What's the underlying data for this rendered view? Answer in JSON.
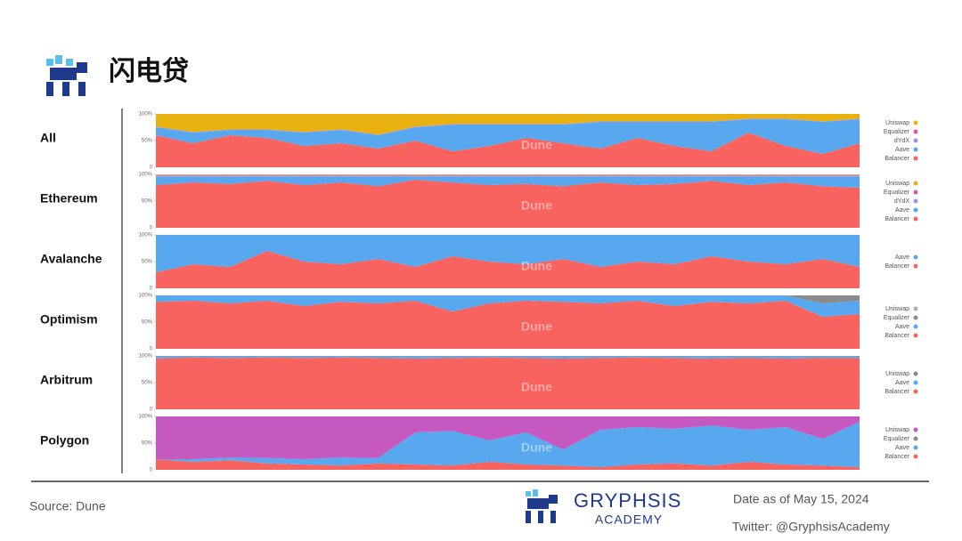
{
  "title": "闪电贷",
  "source": "Source: Dune",
  "brand": "GRYPHSIS",
  "brand_sub": "ACADEMY",
  "date": "Date as of May 15, 2024",
  "twitter": "Twitter: @GryphsisAcademy",
  "watermark": "Dune",
  "chart_data": [
    {
      "type": "area",
      "stacked": true,
      "title": "All",
      "categories": [
        null,
        null,
        null,
        null,
        null,
        null,
        null,
        null,
        null,
        null,
        null,
        null,
        null,
        null,
        null,
        null,
        null,
        null,
        null,
        null
      ],
      "ylim": [
        0,
        100
      ],
      "yticks": [
        0,
        {
          "value": 50,
          "label": "50%"
        },
        {
          "value": 100,
          "label": "100%"
        }
      ],
      "series": [
        {
          "name": "Uniswap",
          "color": "#e9b10f",
          "values": [
            24,
            34,
            29,
            29,
            34,
            29,
            39,
            24,
            19,
            19,
            19,
            19,
            14,
            14,
            14,
            14,
            9,
            9,
            14,
            9
          ]
        },
        {
          "name": "Equalizer",
          "color": "#d65aa8",
          "values": [
            0,
            0,
            0,
            0,
            0,
            0,
            0,
            0,
            0,
            0,
            0,
            0,
            0,
            0,
            0,
            0,
            0,
            0,
            0,
            0
          ]
        },
        {
          "name": "dYdX",
          "color": "#a58ee8",
          "values": [
            1,
            1,
            1,
            1,
            1,
            1,
            1,
            1,
            1,
            1,
            1,
            1,
            1,
            1,
            1,
            1,
            1,
            1,
            1,
            1
          ]
        },
        {
          "name": "Aave",
          "color": "#58a8f0",
          "values": [
            15,
            20,
            10,
            15,
            25,
            25,
            25,
            25,
            50,
            40,
            25,
            35,
            50,
            30,
            45,
            55,
            25,
            50,
            60,
            45
          ]
        },
        {
          "name": "Balancer",
          "color": "#f8625f",
          "values": [
            60,
            45,
            60,
            55,
            40,
            45,
            35,
            50,
            30,
            40,
            55,
            45,
            35,
            55,
            40,
            30,
            65,
            40,
            25,
            45
          ]
        }
      ]
    },
    {
      "type": "area",
      "stacked": true,
      "title": "Ethereum",
      "categories": [
        null,
        null,
        null,
        null,
        null,
        null,
        null,
        null,
        null,
        null,
        null,
        null,
        null,
        null,
        null,
        null,
        null,
        null,
        null,
        null
      ],
      "ylim": [
        0,
        100
      ],
      "yticks": [
        0,
        {
          "value": 50,
          "label": "50%"
        },
        {
          "value": 100,
          "label": "100%"
        }
      ],
      "series": [
        {
          "name": "Uniswap",
          "color": "#e9b10f",
          "values": [
            1,
            1,
            1,
            1,
            1,
            1,
            1,
            1,
            1,
            1,
            1,
            1,
            1,
            1,
            1,
            1,
            1,
            1,
            1,
            1
          ]
        },
        {
          "name": "Equalizer",
          "color": "#d65aa8",
          "values": [
            1,
            1,
            1,
            1,
            1,
            1,
            1,
            1,
            1,
            1,
            1,
            1,
            1,
            1,
            1,
            1,
            1,
            1,
            1,
            1
          ]
        },
        {
          "name": "dYdX",
          "color": "#a58ee8",
          "values": [
            2,
            2,
            2,
            2,
            2,
            2,
            2,
            2,
            2,
            2,
            2,
            2,
            2,
            2,
            2,
            2,
            2,
            2,
            2,
            2
          ]
        },
        {
          "name": "Aave",
          "color": "#58a8f0",
          "values": [
            16,
            11,
            14,
            8,
            16,
            11,
            18,
            6,
            11,
            16,
            14,
            18,
            11,
            16,
            14,
            8,
            16,
            11,
            18,
            21
          ]
        },
        {
          "name": "Balancer",
          "color": "#f8625f",
          "values": [
            80,
            85,
            82,
            88,
            80,
            85,
            78,
            90,
            85,
            80,
            82,
            78,
            85,
            80,
            82,
            88,
            80,
            85,
            78,
            75
          ]
        }
      ]
    },
    {
      "type": "area",
      "stacked": true,
      "title": "Avalanche",
      "categories": [
        null,
        null,
        null,
        null,
        null,
        null,
        null,
        null,
        null,
        null,
        null,
        null,
        null,
        null,
        null,
        null,
        null,
        null,
        null,
        null
      ],
      "ylim": [
        0,
        100
      ],
      "yticks": [
        0,
        {
          "value": 50,
          "label": "50%"
        },
        {
          "value": 100,
          "label": "100%"
        }
      ],
      "series": [
        {
          "name": "Aave",
          "color": "#58a8f0",
          "values": [
            70,
            55,
            60,
            30,
            50,
            55,
            45,
            60,
            40,
            50,
            55,
            45,
            60,
            50,
            55,
            40,
            50,
            55,
            45,
            60
          ]
        },
        {
          "name": "Balancer",
          "color": "#f8625f",
          "values": [
            30,
            45,
            40,
            70,
            50,
            45,
            55,
            40,
            60,
            50,
            45,
            55,
            40,
            50,
            45,
            60,
            50,
            45,
            55,
            40
          ]
        }
      ]
    },
    {
      "type": "area",
      "stacked": true,
      "title": "Optimism",
      "categories": [
        null,
        null,
        null,
        null,
        null,
        null,
        null,
        null,
        null,
        null,
        null,
        null,
        null,
        null,
        null,
        null,
        null,
        null,
        null,
        null
      ],
      "ylim": [
        0,
        100
      ],
      "yticks": [
        0,
        {
          "value": 50,
          "label": "50%"
        },
        {
          "value": 100,
          "label": "100%"
        }
      ],
      "series": [
        {
          "name": "Uniswap",
          "color": "#b0b0b0",
          "values": [
            0,
            0,
            0,
            0,
            0,
            0,
            0,
            0,
            0,
            0,
            0,
            0,
            0,
            0,
            0,
            0,
            0,
            0,
            0,
            0
          ]
        },
        {
          "name": "Equalizer",
          "color": "#8a8a8a",
          "values": [
            0,
            0,
            0,
            0,
            0,
            0,
            0,
            0,
            0,
            0,
            0,
            0,
            0,
            0,
            0,
            0,
            0,
            0,
            15,
            10
          ]
        },
        {
          "name": "Aave",
          "color": "#58a8f0",
          "values": [
            12,
            10,
            15,
            10,
            20,
            12,
            15,
            10,
            30,
            15,
            10,
            12,
            15,
            10,
            20,
            12,
            15,
            10,
            25,
            25
          ]
        },
        {
          "name": "Balancer",
          "color": "#f8625f",
          "values": [
            88,
            90,
            85,
            90,
            80,
            88,
            85,
            90,
            70,
            85,
            90,
            88,
            85,
            90,
            80,
            88,
            85,
            90,
            60,
            65
          ]
        }
      ]
    },
    {
      "type": "area",
      "stacked": true,
      "title": "Arbitrum",
      "categories": [
        null,
        null,
        null,
        null,
        null,
        null,
        null,
        null,
        null,
        null,
        null,
        null,
        null,
        null,
        null,
        null,
        null,
        null,
        null,
        null
      ],
      "ylim": [
        0,
        100
      ],
      "yticks": [
        0,
        {
          "value": 50,
          "label": "50%"
        },
        {
          "value": 100,
          "label": "100%"
        }
      ],
      "series": [
        {
          "name": "Uniswap",
          "color": "#8a8a8a",
          "values": [
            1,
            1,
            1,
            1,
            1,
            1,
            1,
            1,
            1,
            1,
            1,
            1,
            1,
            1,
            1,
            1,
            1,
            1,
            1,
            1
          ]
        },
        {
          "name": "Aave",
          "color": "#58a8f0",
          "values": [
            4,
            2,
            3,
            2,
            3,
            2,
            3,
            4,
            3,
            2,
            3,
            4,
            3,
            2,
            3,
            4,
            3,
            4,
            3,
            3
          ]
        },
        {
          "name": "Balancer",
          "color": "#f8625f",
          "values": [
            95,
            97,
            96,
            97,
            96,
            97,
            96,
            95,
            96,
            97,
            96,
            95,
            96,
            97,
            96,
            95,
            96,
            95,
            96,
            96
          ]
        }
      ]
    },
    {
      "type": "area",
      "stacked": true,
      "title": "Polygon",
      "categories": [
        null,
        null,
        null,
        null,
        null,
        null,
        null,
        null,
        null,
        null,
        null,
        null,
        null,
        null,
        null,
        null,
        null,
        null,
        null,
        null
      ],
      "ylim": [
        0,
        100
      ],
      "yticks": [
        0,
        {
          "value": 50,
          "label": "50%"
        },
        {
          "value": 100,
          "label": "100%"
        }
      ],
      "series": [
        {
          "name": "Uniswap",
          "color": "#c559c0",
          "values": [
            80,
            80,
            77,
            78,
            80,
            77,
            78,
            30,
            27,
            45,
            30,
            62,
            25,
            20,
            23,
            17,
            25,
            20,
            42,
            10
          ]
        },
        {
          "name": "Equalizer",
          "color": "#8a8a8a",
          "values": [
            0,
            0,
            0,
            0,
            0,
            0,
            0,
            0,
            0,
            0,
            0,
            0,
            0,
            0,
            0,
            0,
            0,
            0,
            0,
            0
          ]
        },
        {
          "name": "Aave",
          "color": "#58a8f0",
          "values": [
            0,
            5,
            5,
            10,
            10,
            15,
            10,
            60,
            65,
            40,
            60,
            30,
            70,
            70,
            65,
            75,
            60,
            70,
            50,
            85
          ]
        },
        {
          "name": "Balancer",
          "color": "#f8625f",
          "values": [
            20,
            15,
            18,
            12,
            10,
            8,
            12,
            10,
            8,
            15,
            10,
            8,
            5,
            10,
            12,
            8,
            15,
            10,
            8,
            5
          ]
        }
      ]
    }
  ]
}
